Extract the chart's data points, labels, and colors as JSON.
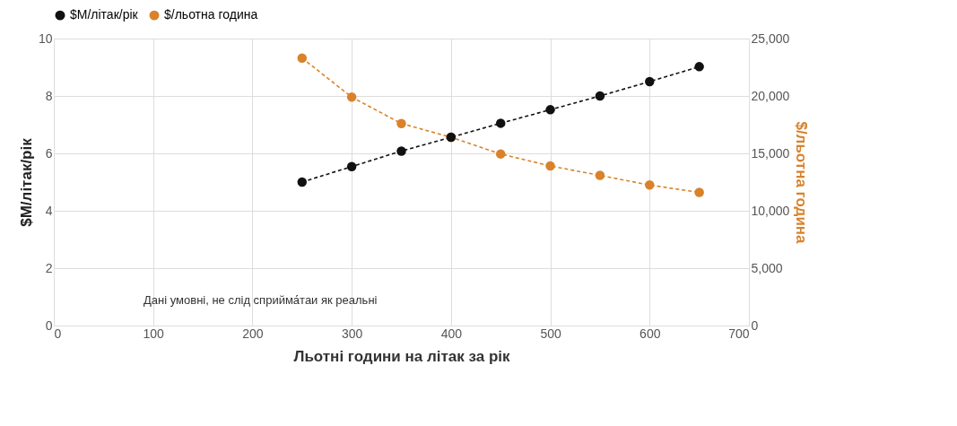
{
  "chart_data": {
    "type": "line",
    "xlabel": "Льотні години на літак за рік",
    "ylabel": "$M/літак/рік",
    "y2label": "$/льотна година",
    "x": [
      250,
      300,
      350,
      400,
      450,
      500,
      550,
      600,
      650
    ],
    "series": [
      {
        "name": "$M/літак/рік",
        "color": "#111111",
        "values": [
          5.0,
          5.54,
          6.08,
          6.56,
          7.05,
          7.52,
          8.0,
          8.5,
          9.02
        ]
      },
      {
        "name": "$/льотна година",
        "color": "#d9822b",
        "axis": "y2",
        "values": [
          23300,
          19900,
          17600,
          16400,
          14950,
          13900,
          13080,
          12240,
          11600
        ]
      }
    ],
    "xlim": [
      0,
      700
    ],
    "xticks": [
      0,
      100,
      200,
      300,
      400,
      500,
      600,
      700
    ],
    "ylim": [
      0,
      10
    ],
    "yticks": [
      0,
      2,
      4,
      6,
      8,
      10
    ],
    "y2lim": [
      0,
      25000
    ],
    "y2ticks": [
      0,
      {
        "value": 5000,
        "label": "5,000"
      },
      {
        "value": 10000,
        "label": "10,000"
      },
      {
        "value": 15000,
        "label": "15,000"
      },
      {
        "value": 20000,
        "label": "20,000"
      },
      {
        "value": 25000,
        "label": "25,000"
      }
    ],
    "annotations": [
      "Дані умовні, не слід сприйма́таи як реальні"
    ],
    "grid": true,
    "legend": "top",
    "marker": "circle",
    "line_style": "dashed"
  }
}
